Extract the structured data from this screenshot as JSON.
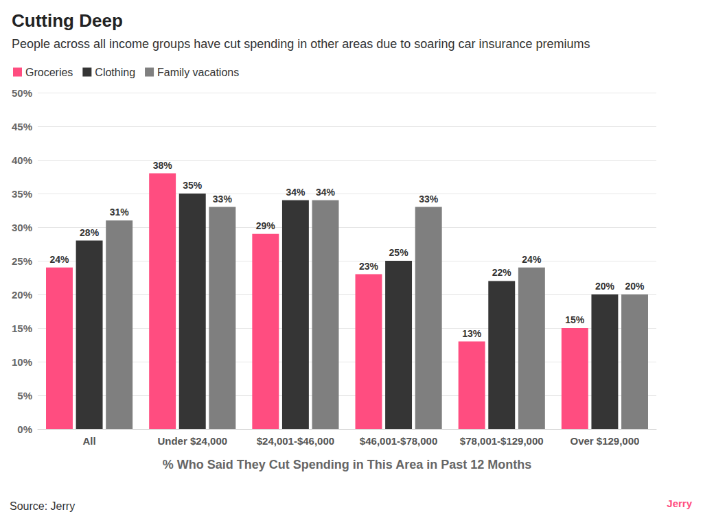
{
  "chart_data": {
    "type": "bar",
    "title": "Cutting Deep",
    "subtitle": "People across all income groups have cut spending in other areas due to soaring car insurance premiums",
    "x_label": "% Who Said They Cut Spending in This Area in Past 12 Months",
    "source": "Source: Jerry",
    "logo": "Jerry",
    "categories": [
      "All",
      "Under $24,000",
      "$24,001-$46,000",
      "$46,001-$78,000",
      "$78,001-$129,000",
      "Over $129,000"
    ],
    "series": [
      {
        "name": "Groceries",
        "color": "#ff4d80",
        "values": [
          24,
          38,
          29,
          23,
          13,
          15
        ],
        "value_labels": [
          "24%",
          "38%",
          "29%",
          "23%",
          "13%",
          "15%"
        ]
      },
      {
        "name": "Clothing",
        "color": "#353535",
        "values": [
          28,
          35,
          34,
          25,
          22,
          20
        ],
        "value_labels": [
          "28%",
          "35%",
          "34%",
          "25%",
          "22%",
          "20%"
        ]
      },
      {
        "name": "Family vacations",
        "color": "#7f7f7f",
        "values": [
          31,
          33,
          34,
          33,
          24,
          20
        ],
        "value_labels": [
          "31%",
          "33%",
          "34%",
          "33%",
          "24%",
          "20%"
        ]
      }
    ],
    "ylim": [
      0,
      50
    ],
    "yticks": [
      {
        "value": 0,
        "label": "0%"
      },
      {
        "value": 5,
        "label": "5%"
      },
      {
        "value": 10,
        "label": "10%"
      },
      {
        "value": 15,
        "label": "15%"
      },
      {
        "value": 20,
        "label": "20%"
      },
      {
        "value": 25,
        "label": "25%"
      },
      {
        "value": 30,
        "label": "30%"
      },
      {
        "value": 35,
        "label": "35%"
      },
      {
        "value": 40,
        "label": "40%"
      },
      {
        "value": 45,
        "label": "45%"
      },
      {
        "value": 50,
        "label": "50%"
      }
    ],
    "grid": true,
    "legend": "top-left",
    "data_labels": true
  }
}
